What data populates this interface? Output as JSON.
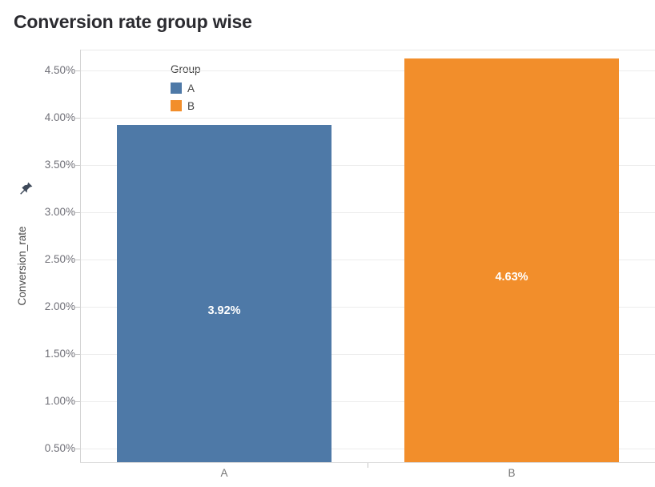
{
  "page_title": "Conversion rate group wise",
  "chart_data": {
    "type": "bar",
    "title": "Conversion rate group wise",
    "categories": [
      "A",
      "B"
    ],
    "series": [
      {
        "name": "Conversion_rate",
        "values": [
          3.92,
          4.63
        ]
      }
    ],
    "value_labels": [
      "3.92%",
      "4.63%"
    ],
    "bar_colors": [
      "#4e79a7",
      "#f28e2b"
    ],
    "xlabel": "",
    "ylabel": "Conversion_rate",
    "ylim": [
      0.355,
      4.72
    ],
    "yticks": [
      {
        "value": 0.5,
        "label": "0.50%"
      },
      {
        "value": 1.0,
        "label": "1.00%"
      },
      {
        "value": 1.5,
        "label": "1.50%"
      },
      {
        "value": 2.0,
        "label": "2.00%"
      },
      {
        "value": 2.5,
        "label": "2.50%"
      },
      {
        "value": 3.0,
        "label": "3.00%"
      },
      {
        "value": 3.5,
        "label": "3.50%"
      },
      {
        "value": 4.0,
        "label": "4.00%"
      },
      {
        "value": 4.5,
        "label": "4.50%"
      }
    ],
    "grid": "horizontal",
    "label_placement": "center-of-bar-from-zero",
    "legend": {
      "title": "Group",
      "position": "inside-top-left",
      "items": [
        {
          "label": "A",
          "color": "#4e79a7"
        },
        {
          "label": "B",
          "color": "#f28e2b"
        }
      ]
    },
    "y_axis": {
      "title": "Conversion_rate",
      "pin_icon": "pushpin",
      "pin_color": "#3f4a5a"
    }
  },
  "colors": {
    "bar_blue": "#4e79a7",
    "bar_orange": "#f28e2b",
    "title_text": "#2b2b30",
    "tick_text": "#707078",
    "gridline": "#ececec"
  }
}
